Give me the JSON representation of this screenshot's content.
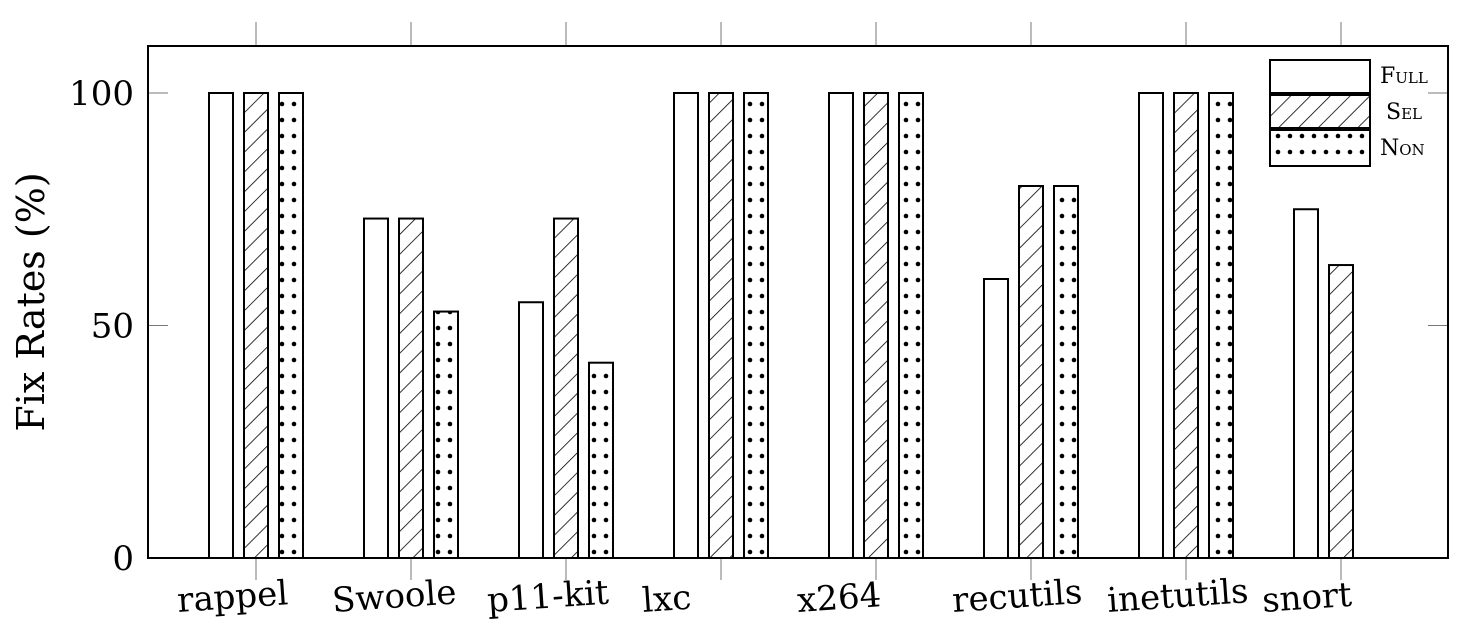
{
  "chart_data": {
    "type": "bar",
    "title": "",
    "xlabel": "",
    "ylabel": "Fix Rates (%)",
    "ylim": [
      0,
      110
    ],
    "yticks": [
      "0",
      "50",
      "100"
    ],
    "grid": false,
    "legend_position": "top-right",
    "categories": [
      "rappel",
      "Swoole",
      "p11-kit",
      "lxc",
      "x264",
      "recutils",
      "inetutils",
      "snort"
    ],
    "series": [
      {
        "name": "Full",
        "pattern": "none",
        "values": [
          100,
          73,
          55,
          100,
          100,
          60,
          100,
          75
        ]
      },
      {
        "name": "Sel",
        "pattern": "hatch",
        "values": [
          100,
          73,
          73,
          100,
          100,
          80,
          100,
          63
        ]
      },
      {
        "name": "Non",
        "pattern": "dots",
        "values": [
          100,
          53,
          42,
          100,
          100,
          80,
          100,
          0
        ]
      }
    ]
  }
}
